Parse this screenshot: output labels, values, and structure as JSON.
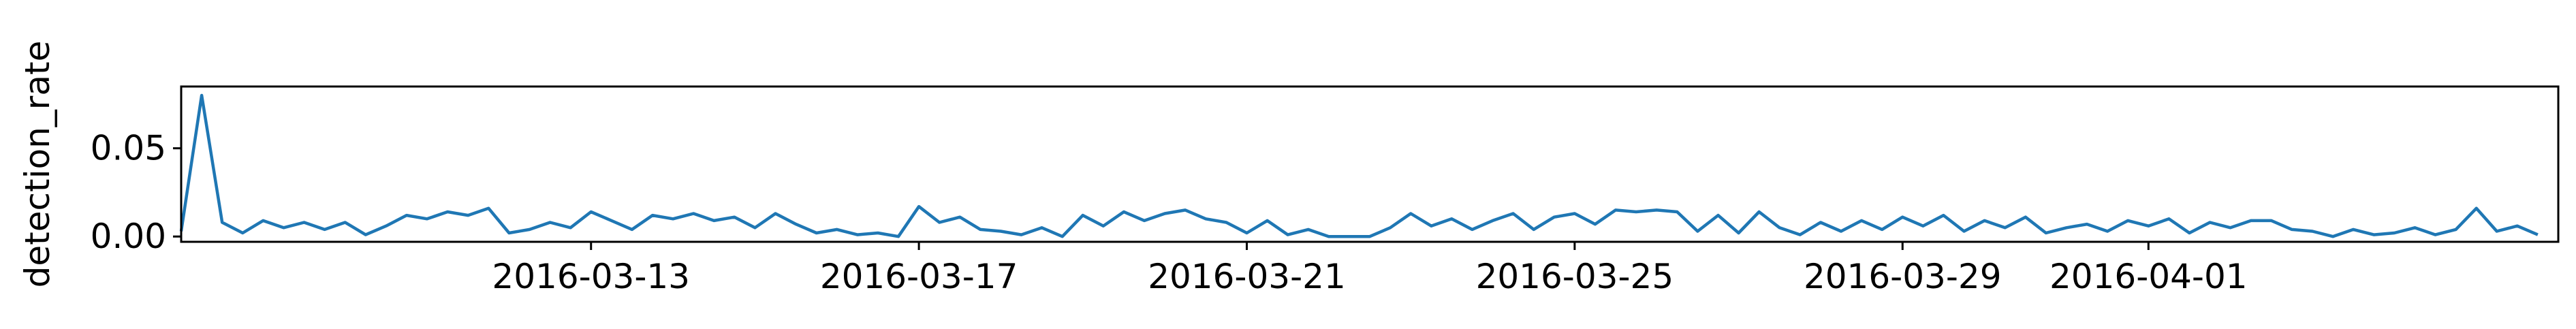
{
  "chart_data": {
    "type": "line",
    "title": "",
    "xlabel": "",
    "ylabel": "detection_rate",
    "x_range": [
      "2016-03-08",
      "2016-04-05"
    ],
    "ylim": [
      -0.003,
      0.085
    ],
    "x_ticks": [
      "2016-03-13",
      "2016-03-17",
      "2016-03-21",
      "2016-03-25",
      "2016-03-29",
      "2016-04-01"
    ],
    "y_ticks": [
      {
        "value": 0.0,
        "label": "0.00"
      },
      {
        "value": 0.05,
        "label": "0.05"
      }
    ],
    "grid": false,
    "legend": "none",
    "series": [
      {
        "color": "#1f77b4",
        "points": [
          [
            "2016-03-08",
            0.003
          ],
          [
            "2016-03-08",
            0.08
          ],
          [
            "2016-03-08",
            0.008
          ],
          [
            "2016-03-08",
            0.002
          ],
          [
            "2016-03-09",
            0.009
          ],
          [
            "2016-03-09",
            0.005
          ],
          [
            "2016-03-09",
            0.008
          ],
          [
            "2016-03-09",
            0.004
          ],
          [
            "2016-03-10",
            0.008
          ],
          [
            "2016-03-10",
            0.001
          ],
          [
            "2016-03-10",
            0.006
          ],
          [
            "2016-03-10",
            0.012
          ],
          [
            "2016-03-11",
            0.01
          ],
          [
            "2016-03-11",
            0.014
          ],
          [
            "2016-03-11",
            0.012
          ],
          [
            "2016-03-11",
            0.016
          ],
          [
            "2016-03-12",
            0.002
          ],
          [
            "2016-03-12",
            0.004
          ],
          [
            "2016-03-12",
            0.008
          ],
          [
            "2016-03-12",
            0.005
          ],
          [
            "2016-03-13",
            0.014
          ],
          [
            "2016-03-13",
            0.009
          ],
          [
            "2016-03-13",
            0.004
          ],
          [
            "2016-03-13",
            0.012
          ],
          [
            "2016-03-14",
            0.01
          ],
          [
            "2016-03-14",
            0.013
          ],
          [
            "2016-03-14",
            0.009
          ],
          [
            "2016-03-14",
            0.011
          ],
          [
            "2016-03-15",
            0.005
          ],
          [
            "2016-03-15",
            0.013
          ],
          [
            "2016-03-15",
            0.007
          ],
          [
            "2016-03-15",
            0.002
          ],
          [
            "2016-03-16",
            0.004
          ],
          [
            "2016-03-16",
            0.001
          ],
          [
            "2016-03-16",
            0.002
          ],
          [
            "2016-03-16",
            0.0
          ],
          [
            "2016-03-17",
            0.017
          ],
          [
            "2016-03-17",
            0.008
          ],
          [
            "2016-03-17",
            0.011
          ],
          [
            "2016-03-17",
            0.004
          ],
          [
            "2016-03-18",
            0.003
          ],
          [
            "2016-03-18",
            0.001
          ],
          [
            "2016-03-18",
            0.005
          ],
          [
            "2016-03-18",
            0.0
          ],
          [
            "2016-03-19",
            0.012
          ],
          [
            "2016-03-19",
            0.006
          ],
          [
            "2016-03-19",
            0.014
          ],
          [
            "2016-03-19",
            0.009
          ],
          [
            "2016-03-20",
            0.013
          ],
          [
            "2016-03-20",
            0.015
          ],
          [
            "2016-03-20",
            0.01
          ],
          [
            "2016-03-20",
            0.008
          ],
          [
            "2016-03-21",
            0.002
          ],
          [
            "2016-03-21",
            0.009
          ],
          [
            "2016-03-21",
            0.001
          ],
          [
            "2016-03-21",
            0.004
          ],
          [
            "2016-03-22",
            0.0
          ],
          [
            "2016-03-22",
            0.0
          ],
          [
            "2016-03-22",
            0.0
          ],
          [
            "2016-03-22",
            0.005
          ],
          [
            "2016-03-23",
            0.013
          ],
          [
            "2016-03-23",
            0.006
          ],
          [
            "2016-03-23",
            0.01
          ],
          [
            "2016-03-23",
            0.004
          ],
          [
            "2016-03-24",
            0.009
          ],
          [
            "2016-03-24",
            0.013
          ],
          [
            "2016-03-24",
            0.004
          ],
          [
            "2016-03-24",
            0.011
          ],
          [
            "2016-03-25",
            0.013
          ],
          [
            "2016-03-25",
            0.007
          ],
          [
            "2016-03-25",
            0.015
          ],
          [
            "2016-03-25",
            0.014
          ],
          [
            "2016-03-26",
            0.015
          ],
          [
            "2016-03-26",
            0.014
          ],
          [
            "2016-03-26",
            0.003
          ],
          [
            "2016-03-26",
            0.012
          ],
          [
            "2016-03-27",
            0.002
          ],
          [
            "2016-03-27",
            0.014
          ],
          [
            "2016-03-27",
            0.005
          ],
          [
            "2016-03-27",
            0.001
          ],
          [
            "2016-03-28",
            0.008
          ],
          [
            "2016-03-28",
            0.003
          ],
          [
            "2016-03-28",
            0.009
          ],
          [
            "2016-03-28",
            0.004
          ],
          [
            "2016-03-29",
            0.011
          ],
          [
            "2016-03-29",
            0.006
          ],
          [
            "2016-03-29",
            0.012
          ],
          [
            "2016-03-29",
            0.003
          ],
          [
            "2016-03-30",
            0.009
          ],
          [
            "2016-03-30",
            0.005
          ],
          [
            "2016-03-30",
            0.011
          ],
          [
            "2016-03-30",
            0.002
          ],
          [
            "2016-03-31",
            0.005
          ],
          [
            "2016-03-31",
            0.007
          ],
          [
            "2016-03-31",
            0.003
          ],
          [
            "2016-03-31",
            0.009
          ],
          [
            "2016-04-01",
            0.006
          ],
          [
            "2016-04-01",
            0.01
          ],
          [
            "2016-04-01",
            0.002
          ],
          [
            "2016-04-01",
            0.008
          ],
          [
            "2016-04-02",
            0.005
          ],
          [
            "2016-04-02",
            0.009
          ],
          [
            "2016-04-02",
            0.009
          ],
          [
            "2016-04-02",
            0.004
          ],
          [
            "2016-04-03",
            0.003
          ],
          [
            "2016-04-03",
            0.0
          ],
          [
            "2016-04-03",
            0.004
          ],
          [
            "2016-04-03",
            0.001
          ],
          [
            "2016-04-04",
            0.002
          ],
          [
            "2016-04-04",
            0.005
          ],
          [
            "2016-04-04",
            0.001
          ],
          [
            "2016-04-04",
            0.004
          ],
          [
            "2016-04-05",
            0.016
          ],
          [
            "2016-04-05",
            0.003
          ],
          [
            "2016-04-05",
            0.006
          ],
          [
            "2016-04-05",
            0.001
          ]
        ]
      }
    ]
  }
}
